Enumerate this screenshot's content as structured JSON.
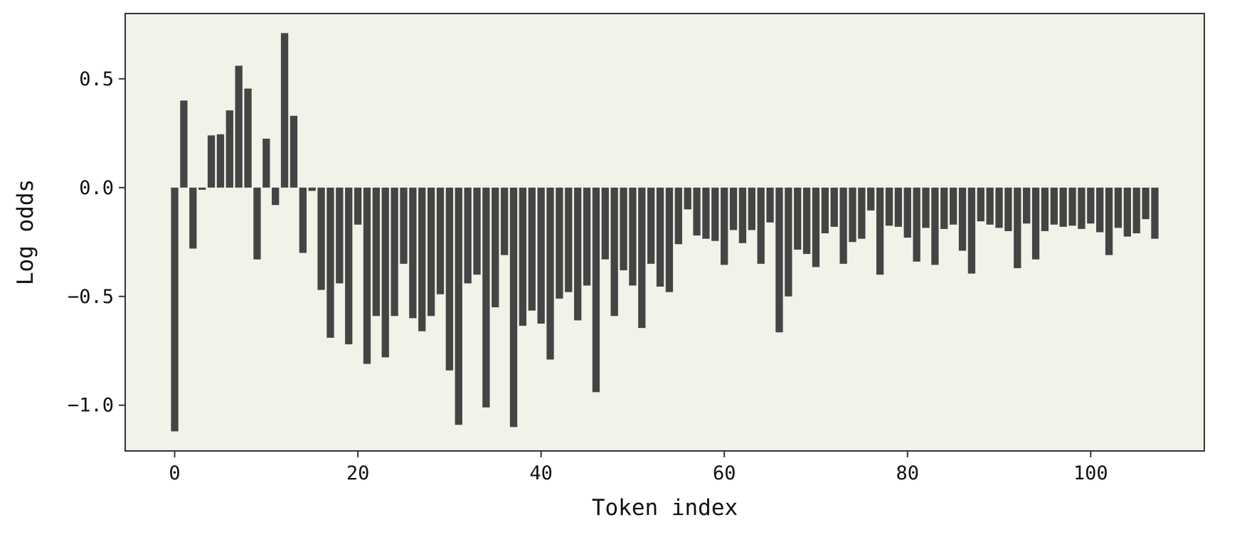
{
  "chart_data": {
    "type": "bar",
    "title": "",
    "xlabel": "Token index",
    "ylabel": "Log odds",
    "xlim": [
      -5.4,
      112.4
    ],
    "ylim": [
      -1.21,
      0.8
    ],
    "xticks": [
      0,
      20,
      40,
      60,
      80,
      100
    ],
    "yticks": [
      0.5,
      0.0,
      -0.5,
      -1.0
    ],
    "xtick_labels": [
      "0",
      "20",
      "40",
      "60",
      "80",
      "100"
    ],
    "ytick_labels": [
      "0.5",
      "0.0",
      "−0.5",
      "−1.0"
    ],
    "grid": false,
    "legend": "none",
    "colors": {
      "bar": "#444444",
      "plot_background": "#f3f2e8",
      "axes": "#333333"
    },
    "x": [
      0,
      1,
      2,
      3,
      4,
      5,
      6,
      7,
      8,
      9,
      10,
      11,
      12,
      13,
      14,
      15,
      16,
      17,
      18,
      19,
      20,
      21,
      22,
      23,
      24,
      25,
      26,
      27,
      28,
      29,
      30,
      31,
      32,
      33,
      34,
      35,
      36,
      37,
      38,
      39,
      40,
      41,
      42,
      43,
      44,
      45,
      46,
      47,
      48,
      49,
      50,
      51,
      52,
      53,
      54,
      55,
      56,
      57,
      58,
      59,
      60,
      61,
      62,
      63,
      64,
      65,
      66,
      67,
      68,
      69,
      70,
      71,
      72,
      73,
      74,
      75,
      76,
      77,
      78,
      79,
      80,
      81,
      82,
      83,
      84,
      85,
      86,
      87,
      88,
      89,
      90,
      91,
      92,
      93,
      94,
      95,
      96,
      97,
      98,
      99,
      100,
      101,
      102,
      103,
      104,
      105,
      106,
      107
    ],
    "values": [
      -1.12,
      0.4,
      -0.28,
      -0.01,
      0.24,
      0.245,
      0.355,
      0.56,
      0.455,
      -0.33,
      0.225,
      -0.08,
      0.71,
      0.33,
      -0.3,
      -0.015,
      -0.47,
      -0.69,
      -0.44,
      -0.72,
      -0.17,
      -0.81,
      -0.59,
      -0.78,
      -0.59,
      -0.35,
      -0.6,
      -0.66,
      -0.59,
      -0.49,
      -0.84,
      -1.09,
      -0.44,
      -0.4,
      -1.01,
      -0.55,
      -0.31,
      -1.1,
      -0.635,
      -0.565,
      -0.625,
      -0.79,
      -0.51,
      -0.48,
      -0.61,
      -0.45,
      -0.94,
      -0.33,
      -0.59,
      -0.38,
      -0.45,
      -0.645,
      -0.35,
      -0.455,
      -0.48,
      -0.26,
      -0.1,
      -0.22,
      -0.235,
      -0.245,
      -0.355,
      -0.195,
      -0.255,
      -0.195,
      -0.35,
      -0.16,
      -0.665,
      -0.5,
      -0.285,
      -0.305,
      -0.365,
      -0.21,
      -0.18,
      -0.35,
      -0.25,
      -0.235,
      -0.105,
      -0.4,
      -0.175,
      -0.18,
      -0.23,
      -0.34,
      -0.185,
      -0.355,
      -0.19,
      -0.17,
      -0.29,
      -0.395,
      -0.155,
      -0.17,
      -0.185,
      -0.2,
      -0.37,
      -0.165,
      -0.33,
      -0.2,
      -0.17,
      -0.18,
      -0.175,
      -0.19,
      -0.165,
      -0.205,
      -0.31,
      -0.185,
      -0.225,
      -0.21,
      -0.145,
      -0.235
    ]
  }
}
